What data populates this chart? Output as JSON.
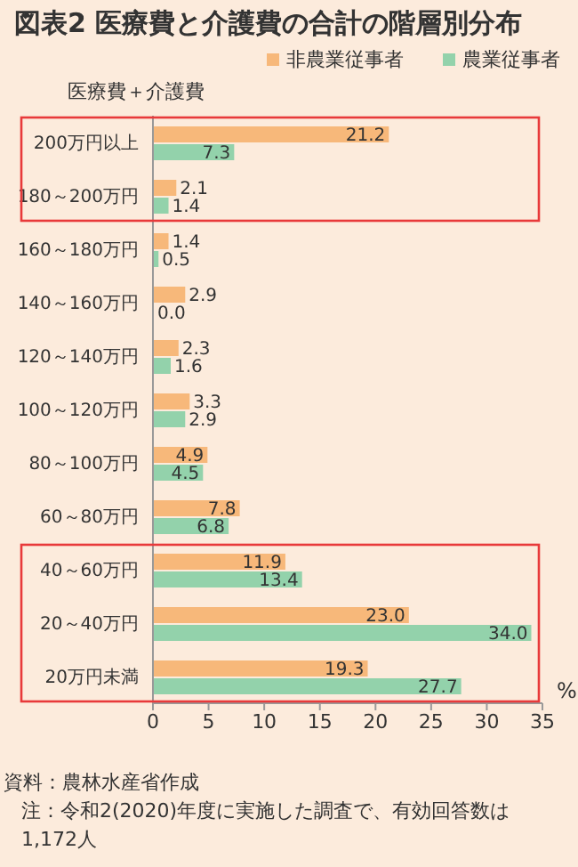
{
  "chart_data": {
    "type": "bar",
    "orientation": "horizontal",
    "title": "図表2 医療費と介護費の合計の階層別分布",
    "ylabel": "医療費＋介護費",
    "xlabel": "%",
    "categories": [
      "200万円以上",
      "180～200万円",
      "160～180万円",
      "140～160万円",
      "120～140万円",
      "100～120万円",
      "80～100万円",
      "60～80万円",
      "40～60万円",
      "20～40万円",
      "20万円未満"
    ],
    "series": [
      {
        "name": "非農業従事者",
        "color": "#f7b87a",
        "values": [
          21.2,
          2.1,
          1.4,
          2.9,
          2.3,
          3.3,
          4.9,
          7.8,
          11.9,
          23.0,
          19.3
        ],
        "value_labels": [
          "21.2",
          "2.1",
          "1.4",
          "2.9",
          "2.3",
          "3.3",
          "4.9",
          "7.8",
          "11.9",
          "23.0",
          "19.3"
        ]
      },
      {
        "name": "農業従事者",
        "color": "#93d2ab",
        "values": [
          7.3,
          1.4,
          0.5,
          0.0,
          1.6,
          2.9,
          4.5,
          6.8,
          13.4,
          34.0,
          27.7
        ],
        "value_labels": [
          "7.3",
          "1.4",
          "0.5",
          "0.0",
          "1.6",
          "2.9",
          "4.5",
          "6.8",
          "13.4",
          "34.0",
          "27.7"
        ]
      }
    ],
    "xlim": [
      0,
      35
    ],
    "xticks": [
      0,
      5,
      10,
      15,
      20,
      25,
      30,
      35
    ],
    "grid": false,
    "legend": "top right",
    "annotations": [
      "資料：農林水産省作成",
      "注：令和2(2020)年度に実施した調査で、有効回答数は1,172人"
    ]
  }
}
